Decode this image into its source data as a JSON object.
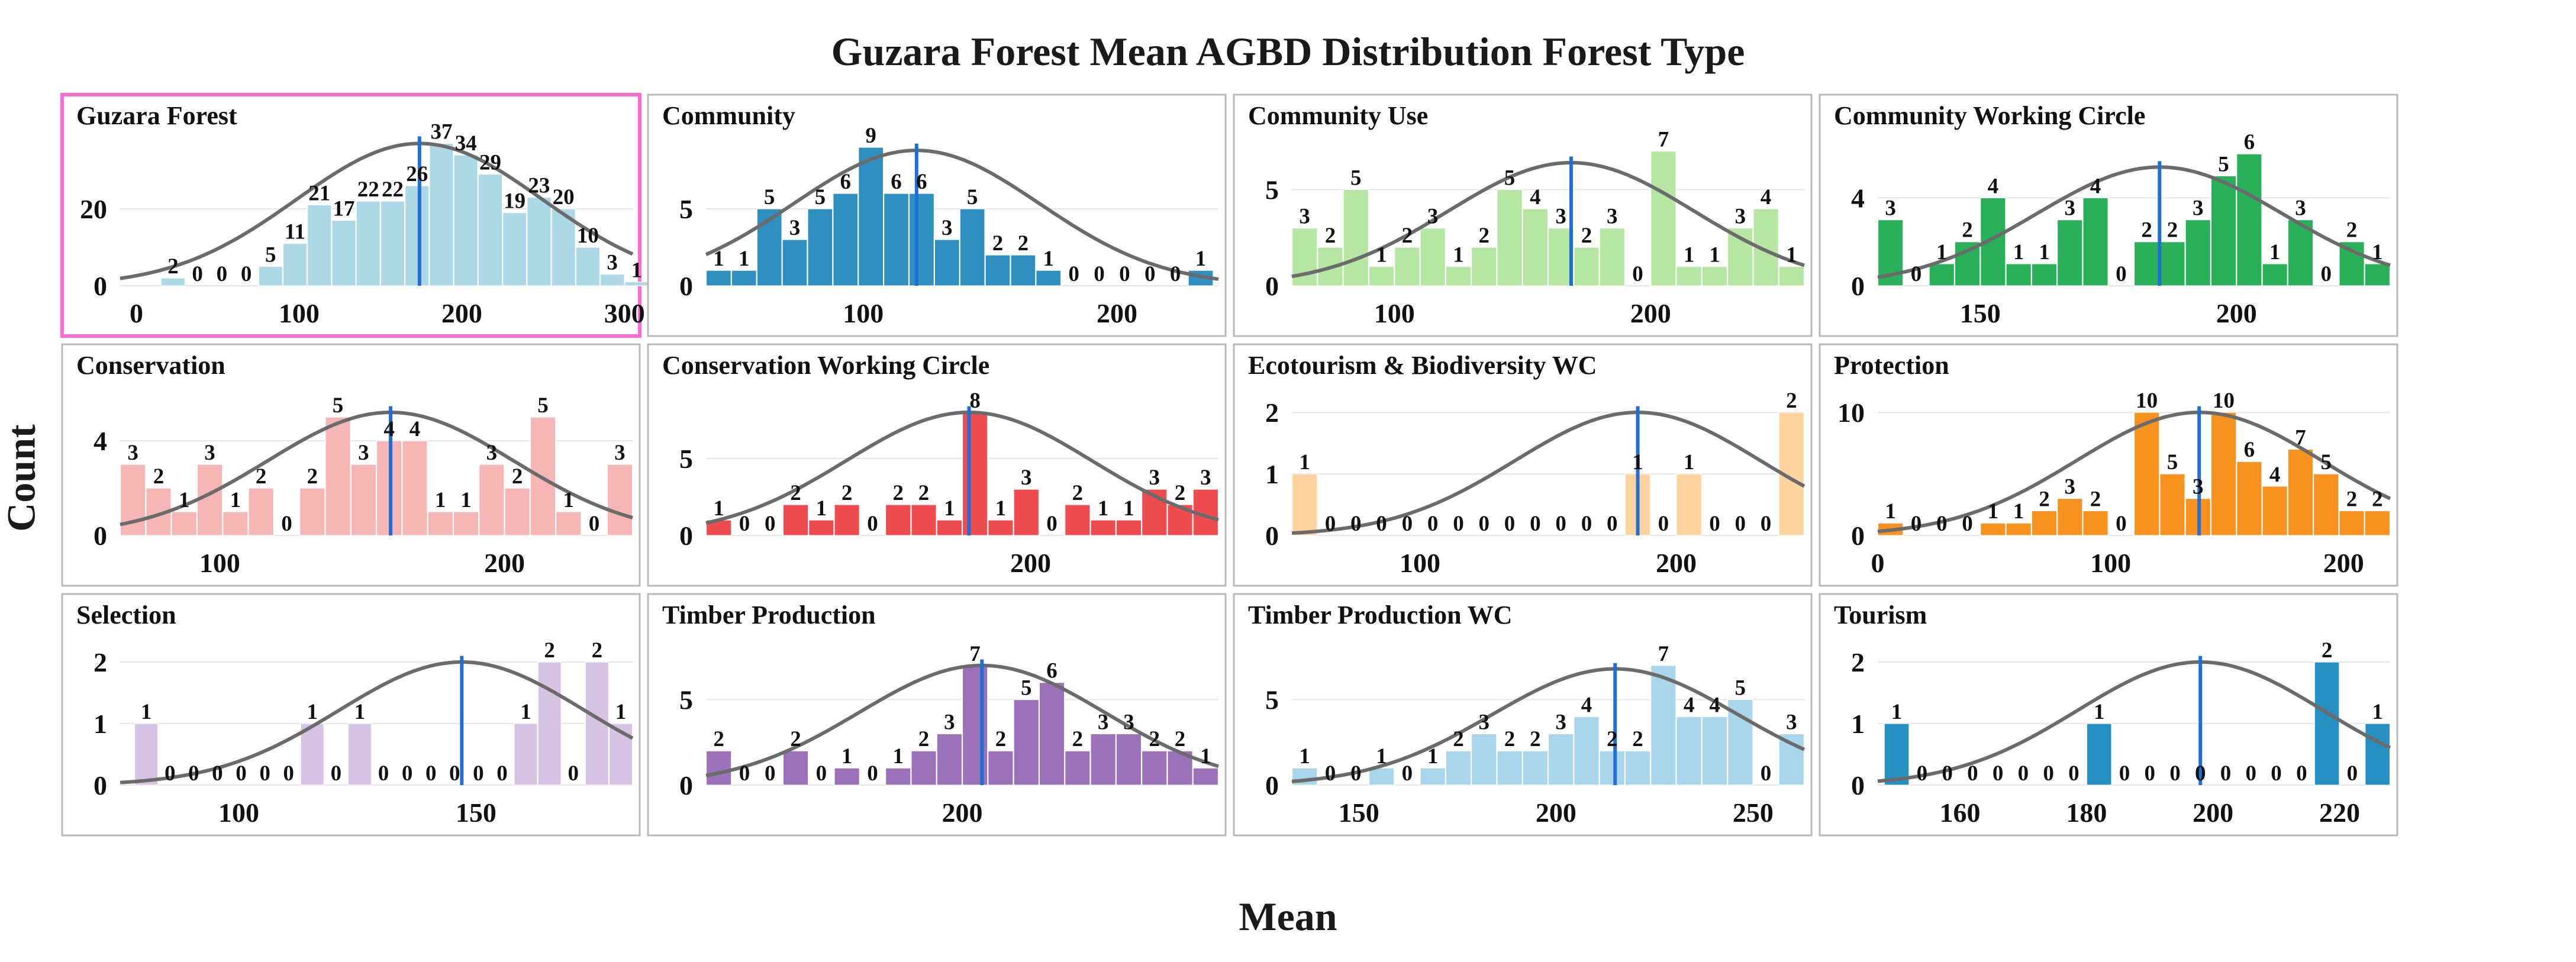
{
  "title": "Guzara Forest Mean AGBD Distribution Forest Type",
  "ylabel": "Count",
  "xlabel": "Mean",
  "chart_data": [
    {
      "type": "bar",
      "title": "Guzara Forest",
      "color": "#add8e6",
      "highlighted": true,
      "x_start": 0,
      "bin_width": 15,
      "values": [
        0,
        2,
        0,
        0,
        0,
        5,
        11,
        21,
        17,
        22,
        22,
        26,
        37,
        34,
        29,
        19,
        23,
        20,
        10,
        3,
        1
      ],
      "labels": [
        "",
        "2",
        "0",
        "0",
        "0",
        "5",
        "11",
        "21",
        "17",
        "22",
        "22",
        "26",
        "37",
        "34",
        "29",
        "19",
        "23",
        "20",
        "10",
        "3",
        "1"
      ],
      "mean": 174,
      "curve_peak": 37,
      "xlim": [
        -10,
        305
      ],
      "xticks": [
        0,
        100,
        200,
        300
      ],
      "yticks": [
        0,
        20
      ],
      "ylim": [
        0,
        40
      ]
    },
    {
      "type": "bar",
      "title": "Community",
      "color": "#2e8fc0",
      "x_start": 38,
      "bin_width": 10,
      "values": [
        1,
        1,
        5,
        3,
        5,
        6,
        9,
        6,
        6,
        3,
        5,
        2,
        2,
        1,
        0,
        0,
        0,
        0,
        0,
        1
      ],
      "labels": [
        "1",
        "1",
        "5",
        "3",
        "5",
        "6",
        "9",
        "6",
        "6",
        "3",
        "5",
        "2",
        "2",
        "1",
        "0",
        "0",
        "0",
        "0",
        "0",
        "1"
      ],
      "mean": 121,
      "curve_peak": 8.8,
      "xlim": [
        38,
        240
      ],
      "xticks": [
        100,
        200
      ],
      "yticks": [
        0,
        5
      ],
      "ylim": [
        0,
        10
      ]
    },
    {
      "type": "bar",
      "title": "Community Use",
      "color": "#b5e6a2",
      "x_start": 60,
      "bin_width": 10,
      "values": [
        3,
        2,
        5,
        1,
        2,
        3,
        1,
        2,
        5,
        4,
        3,
        2,
        3,
        0,
        7,
        1,
        1,
        3,
        4,
        1
      ],
      "labels": [
        "3",
        "2",
        "5",
        "1",
        "2",
        "3",
        "1",
        "2",
        "5",
        "4",
        "3",
        "2",
        "3",
        "0",
        "7",
        "1",
        "1",
        "3",
        "4",
        "1"
      ],
      "mean": 169,
      "curve_peak": 6.4,
      "xlim": [
        60,
        260
      ],
      "xticks": [
        100,
        200
      ],
      "yticks": [
        0,
        5
      ],
      "ylim": [
        0,
        8
      ]
    },
    {
      "type": "bar",
      "title": "Community Working Circle",
      "color": "#2bb05a",
      "x_start": 130,
      "bin_width": 5,
      "values": [
        3,
        0,
        1,
        2,
        4,
        1,
        1,
        3,
        4,
        0,
        2,
        2,
        3,
        5,
        6,
        1,
        3,
        0,
        2,
        1
      ],
      "labels": [
        "3",
        "0",
        "1",
        "2",
        "4",
        "1",
        "1",
        "3",
        "4",
        "0",
        "2",
        "2",
        "3",
        "5",
        "6",
        "1",
        "3",
        "0",
        "2",
        "1"
      ],
      "mean": 185,
      "curve_peak": 5.4,
      "xlim": [
        130,
        230
      ],
      "xticks": [
        150,
        200
      ],
      "yticks": [
        0,
        4
      ],
      "ylim": [
        0,
        7
      ]
    },
    {
      "type": "bar",
      "title": "Conservation",
      "color": "#f7b6b6",
      "x_start": 65,
      "bin_width": 9,
      "values": [
        3,
        2,
        1,
        3,
        1,
        2,
        0,
        2,
        5,
        3,
        4,
        4,
        1,
        1,
        3,
        2,
        5,
        1,
        0,
        3
      ],
      "labels": [
        "3",
        "2",
        "1",
        "3",
        "1",
        "2",
        "0",
        "2",
        "5",
        "3",
        "4",
        "4",
        "1",
        "1",
        "3",
        "2",
        "5",
        "1",
        "0",
        "3"
      ],
      "mean": 160,
      "curve_peak": 5.2,
      "xlim": [
        65,
        245
      ],
      "xticks": [
        100,
        200
      ],
      "yticks": [
        0,
        4
      ],
      "ylim": [
        0,
        6.5
      ]
    },
    {
      "type": "bar",
      "title": "Conservation Working Circle",
      "color": "#ef4c50",
      "x_start": 105,
      "bin_width": 7.5,
      "values": [
        1,
        0,
        0,
        2,
        1,
        2,
        0,
        2,
        2,
        1,
        8,
        1,
        3,
        0,
        2,
        1,
        1,
        3,
        2,
        3
      ],
      "labels": [
        "1",
        "0",
        "0",
        "2",
        "1",
        "2",
        "0",
        "2",
        "2",
        "1",
        "8",
        "1",
        "3",
        "0",
        "2",
        "1",
        "1",
        "3",
        "2",
        "3"
      ],
      "mean": 182,
      "curve_peak": 8,
      "xlim": [
        105,
        255
      ],
      "xticks": [
        200
      ],
      "yticks": [
        0,
        5
      ],
      "ylim": [
        0,
        10
      ]
    },
    {
      "type": "bar",
      "title": "Ecotourism & Biodiversity WC",
      "color": "#ffd39e",
      "x_start": 50,
      "bin_width": 10,
      "values": [
        1,
        0,
        0,
        0,
        0,
        0,
        0,
        0,
        0,
        0,
        0,
        0,
        0,
        1,
        0,
        1,
        0,
        0,
        0,
        2
      ],
      "labels": [
        "1",
        "0",
        "0",
        "0",
        "0",
        "0",
        "0",
        "0",
        "0",
        "0",
        "0",
        "0",
        "0",
        "1",
        "0",
        "1",
        "0",
        "0",
        "0",
        "2"
      ],
      "mean": 185,
      "curve_peak": 2,
      "xlim": [
        50,
        250
      ],
      "xticks": [
        100,
        200
      ],
      "yticks": [
        0,
        1,
        2
      ],
      "ylim": [
        0,
        2.5
      ]
    },
    {
      "type": "bar",
      "title": "Protection",
      "color": "#f7921e",
      "x_start": 0,
      "bin_width": 11,
      "values": [
        1,
        0,
        0,
        0,
        1,
        1,
        2,
        3,
        2,
        0,
        10,
        5,
        3,
        10,
        6,
        4,
        7,
        5,
        2,
        2
      ],
      "labels": [
        "1",
        "0",
        "0",
        "0",
        "1",
        "1",
        "2",
        "3",
        "2",
        "0",
        "10",
        "5",
        "3",
        "10",
        "6",
        "4",
        "7",
        "5",
        "2",
        "2"
      ],
      "mean": 138,
      "curve_peak": 10,
      "xlim": [
        0,
        220
      ],
      "xticks": [
        0,
        100,
        200
      ],
      "yticks": [
        0,
        10
      ],
      "ylim": [
        0,
        12.5
      ]
    },
    {
      "type": "bar",
      "title": "Selection",
      "color": "#d7c3e3",
      "x_start": 78,
      "bin_width": 5,
      "values": [
        1,
        0,
        0,
        0,
        0,
        0,
        0,
        1,
        0,
        1,
        0,
        0,
        0,
        0,
        0,
        0,
        1,
        2,
        0,
        2,
        1
      ],
      "labels": [
        "1",
        "0",
        "0",
        "0",
        "0",
        "0",
        "0",
        "1",
        "0",
        "1",
        "0",
        "0",
        "0",
        "0",
        "0",
        "0",
        "1",
        "2",
        "0",
        "2",
        "1"
      ],
      "mean": 147,
      "curve_peak": 2,
      "xlim": [
        75,
        183
      ],
      "xticks": [
        100,
        150
      ],
      "yticks": [
        0,
        1,
        2
      ],
      "ylim": [
        0,
        2.5
      ]
    },
    {
      "type": "bar",
      "title": "Timber Production",
      "color": "#9b71b9",
      "x_start": 135,
      "bin_width": 6.5,
      "values": [
        2,
        0,
        0,
        2,
        0,
        1,
        0,
        1,
        2,
        3,
        7,
        2,
        5,
        6,
        2,
        3,
        3,
        2,
        2,
        1
      ],
      "labels": [
        "2",
        "0",
        "0",
        "2",
        "0",
        "1",
        "0",
        "1",
        "2",
        "3",
        "7",
        "2",
        "5",
        "6",
        "2",
        "3",
        "3",
        "2",
        "2",
        "1"
      ],
      "mean": 205,
      "curve_peak": 7,
      "xlim": [
        135,
        265
      ],
      "xticks": [
        200
      ],
      "yticks": [
        0,
        5
      ],
      "ylim": [
        0,
        9
      ]
    },
    {
      "type": "bar",
      "title": "Timber Production WC",
      "color": "#a9d6ea",
      "x_start": 133,
      "bin_width": 6.5,
      "values": [
        1,
        0,
        0,
        1,
        0,
        1,
        2,
        3,
        2,
        2,
        3,
        4,
        2,
        2,
        7,
        4,
        4,
        5,
        0,
        3
      ],
      "labels": [
        "1",
        "0",
        "0",
        "1",
        "0",
        "1",
        "2",
        "3",
        "2",
        "2",
        "3",
        "4",
        "2",
        "2",
        "7",
        "4",
        "4",
        "5",
        "0",
        "3"
      ],
      "mean": 215,
      "curve_peak": 6.8,
      "xlim": [
        133,
        263
      ],
      "xticks": [
        150,
        200,
        250
      ],
      "yticks": [
        0,
        5
      ],
      "ylim": [
        0,
        9
      ]
    },
    {
      "type": "bar",
      "title": "Tourism",
      "color": "#2790c2",
      "x_start": 148,
      "bin_width": 4,
      "values": [
        1,
        0,
        0,
        0,
        0,
        0,
        0,
        0,
        1,
        0,
        0,
        0,
        0,
        0,
        0,
        0,
        0,
        2,
        0,
        1
      ],
      "labels": [
        "1",
        "0",
        "0",
        "0",
        "0",
        "0",
        "0",
        "0",
        "1",
        "0",
        "0",
        "0",
        "0",
        "0",
        "0",
        "0",
        "0",
        "2",
        "0",
        "1"
      ],
      "mean": 198,
      "curve_peak": 2,
      "xlim": [
        147,
        228
      ],
      "xticks": [
        160,
        180,
        200,
        220
      ],
      "yticks": [
        0,
        1,
        2
      ],
      "ylim": [
        0,
        2.5
      ]
    }
  ]
}
